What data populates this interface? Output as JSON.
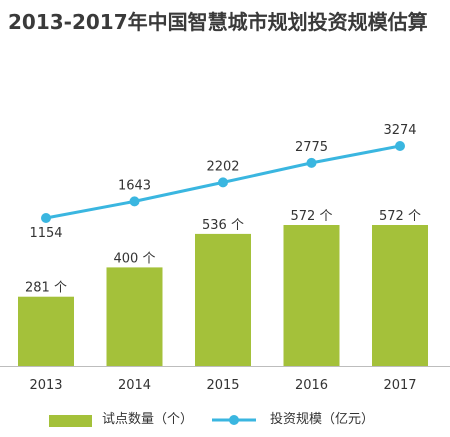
{
  "title": "2013-2017年中国智慧城市规划投资规模估算",
  "colors": {
    "bar": "#a4c13a",
    "line": "#3ab6e0",
    "axis": "#bdbdbd",
    "text": "#333333",
    "title": "#3a3a3a"
  },
  "legend": {
    "bars_label": "试点数量（个）",
    "line_label": "投资规模（亿元）"
  },
  "chart_data": {
    "type": "bar",
    "title": "2013-2017年中国智慧城市规划投资规模估算",
    "categories": [
      "2013",
      "2014",
      "2015",
      "2016",
      "2017"
    ],
    "series": [
      {
        "name": "试点数量（个）",
        "type": "bar",
        "values": [
          281,
          400,
          536,
          572,
          572
        ],
        "labels": [
          "281 个",
          "400 个",
          "536 个",
          "572 个",
          "572 个"
        ]
      },
      {
        "name": "投资规模（亿元）",
        "type": "line",
        "values": [
          1154,
          1643,
          2202,
          2775,
          3274
        ],
        "labels": [
          "1154",
          "1643",
          "2202",
          "2775",
          "3274"
        ]
      }
    ],
    "grid": false,
    "legend_position": "bottom"
  }
}
